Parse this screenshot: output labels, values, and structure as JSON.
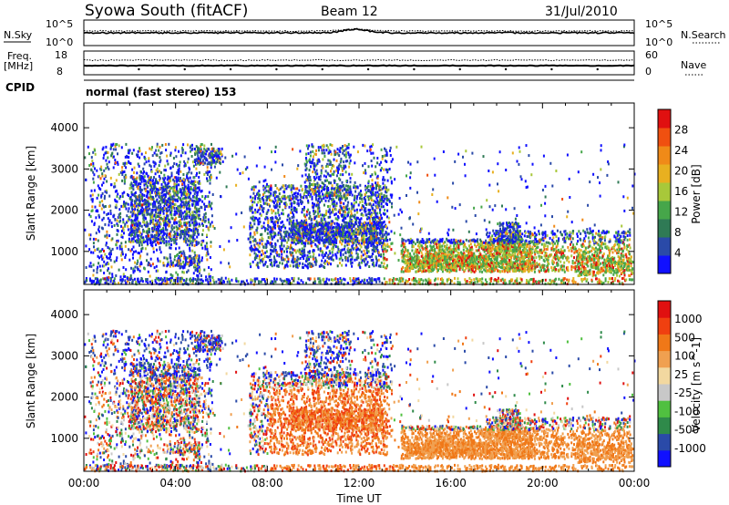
{
  "header": {
    "station": "Syowa South (fitACF)",
    "beam": "Beam 12",
    "date": "31/Jul/2010"
  },
  "panels": {
    "nsky_label": "N.Sky",
    "nsky_ticks_left": [
      "10^5",
      "10^0"
    ],
    "nsky_ticks_right": [
      "10^5",
      "10^0"
    ],
    "nsearch_label": "N.Search",
    "freq_label_line1": "Freq.",
    "freq_label_line2": "[MHz]",
    "freq_ticks": [
      "18",
      "8"
    ],
    "nave_ticks": [
      "60",
      "0"
    ],
    "nave_label": "Nave",
    "cpid_label": "CPID",
    "cpid_text": "normal (fast stereo) 153"
  },
  "colors": {
    "power_scale": [
      "#1010ff",
      "#2a4aa8",
      "#2f7a55",
      "#46a64a",
      "#a8c83a",
      "#e8b020",
      "#f08a18",
      "#f05010",
      "#e01010"
    ],
    "velocity_scale": [
      "#e01010",
      "#f04010",
      "#f07818",
      "#f0a050",
      "#f2d8a0",
      "#c8c8c8",
      "#50c040",
      "#2f8a4a",
      "#2a4aa8",
      "#1010ff"
    ]
  },
  "chart_data": [
    {
      "type": "heatmap",
      "name": "power",
      "ylabel": "Slant Range [km]",
      "yticks": [
        "1000",
        "2000",
        "3000",
        "4000"
      ],
      "ylim": [
        200,
        4600
      ],
      "xticks": [
        "00:00",
        "04:00",
        "08:00",
        "12:00",
        "16:00",
        "20:00",
        "00:00"
      ],
      "colorbar_label": "Power [dB]",
      "colorbar_ticks": [
        "4",
        "8",
        "12",
        "16",
        "20",
        "24",
        "28"
      ]
    },
    {
      "type": "heatmap",
      "name": "velocity",
      "ylabel": "Slant Range [km]",
      "yticks": [
        "1000",
        "2000",
        "3000",
        "4000"
      ],
      "ylim": [
        200,
        4600
      ],
      "xticks": [
        "00:00",
        "04:00",
        "08:00",
        "12:00",
        "16:00",
        "20:00",
        "00:00"
      ],
      "xlabel": "Time UT",
      "colorbar_label": "Velocity [m s^-1]",
      "colorbar_ticks": [
        "1000",
        "500",
        "100",
        "25",
        "-25",
        "-100",
        "-500",
        "-1000"
      ]
    }
  ]
}
